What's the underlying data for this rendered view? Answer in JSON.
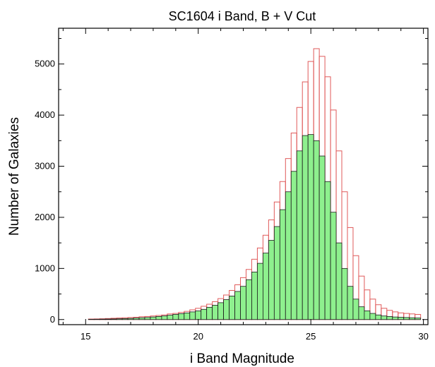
{
  "chart_data": {
    "type": "bar",
    "title": "SC1604 i Band, B + V Cut",
    "xlabel": "i Band Magnitude",
    "ylabel": "Number of Galaxies",
    "xlim": [
      13.8,
      30.2
    ],
    "ylim": [
      -100,
      5700
    ],
    "bin_width": 0.25,
    "x_ticks": [
      15,
      20,
      25,
      30
    ],
    "y_ticks": [
      0,
      1000,
      2000,
      3000,
      4000,
      5000
    ],
    "grid": false,
    "series": [
      {
        "color": "#e05a5a",
        "style": "outline",
        "x": [
          15.25,
          15.5,
          15.75,
          16.0,
          16.25,
          16.5,
          16.75,
          17.0,
          17.25,
          17.5,
          17.75,
          18.0,
          18.25,
          18.5,
          18.75,
          19.0,
          19.25,
          19.5,
          19.75,
          20.0,
          20.25,
          20.5,
          20.75,
          21.0,
          21.25,
          21.5,
          21.75,
          22.0,
          22.25,
          22.5,
          22.75,
          23.0,
          23.25,
          23.5,
          23.75,
          24.0,
          24.25,
          24.5,
          24.75,
          25.0,
          25.25,
          25.5,
          25.75,
          26.0,
          26.25,
          26.5,
          26.75,
          27.0,
          27.25,
          27.5,
          27.75,
          28.0,
          28.25,
          28.5,
          28.75,
          29.0,
          29.25,
          29.5,
          29.75
        ],
        "values": [
          10,
          12,
          15,
          20,
          25,
          30,
          35,
          40,
          45,
          55,
          60,
          70,
          80,
          90,
          110,
          120,
          140,
          160,
          190,
          220,
          260,
          300,
          350,
          410,
          480,
          570,
          680,
          820,
          980,
          1180,
          1400,
          1650,
          1950,
          2300,
          2700,
          3150,
          3650,
          4150,
          4650,
          5050,
          5300,
          5150,
          4750,
          4100,
          3300,
          2500,
          1800,
          1250,
          850,
          580,
          400,
          290,
          220,
          180,
          150,
          130,
          120,
          110,
          100
        ]
      },
      {
        "color": "#8ef08e",
        "style": "filled",
        "x": [
          15.25,
          15.5,
          15.75,
          16.0,
          16.25,
          16.5,
          16.75,
          17.0,
          17.25,
          17.5,
          17.75,
          18.0,
          18.25,
          18.5,
          18.75,
          19.0,
          19.25,
          19.5,
          19.75,
          20.0,
          20.25,
          20.5,
          20.75,
          21.0,
          21.25,
          21.5,
          21.75,
          22.0,
          22.25,
          22.5,
          22.75,
          23.0,
          23.25,
          23.5,
          23.75,
          24.0,
          24.25,
          24.5,
          24.75,
          25.0,
          25.25,
          25.5,
          25.75,
          26.0,
          26.25,
          26.5,
          26.75,
          27.0,
          27.25,
          27.5,
          27.75,
          28.0,
          28.25,
          28.5,
          28.75,
          29.0,
          29.25,
          29.5,
          29.75
        ],
        "values": [
          5,
          6,
          8,
          10,
          12,
          15,
          18,
          22,
          28,
          35,
          40,
          50,
          60,
          70,
          85,
          100,
          115,
          130,
          150,
          170,
          200,
          240,
          280,
          330,
          390,
          460,
          550,
          650,
          780,
          930,
          1100,
          1300,
          1550,
          1820,
          2150,
          2500,
          2900,
          3300,
          3600,
          3620,
          3500,
          3200,
          2700,
          2100,
          1500,
          1000,
          650,
          400,
          250,
          170,
          120,
          90,
          70,
          60,
          50,
          45,
          40,
          35,
          30
        ]
      }
    ]
  }
}
